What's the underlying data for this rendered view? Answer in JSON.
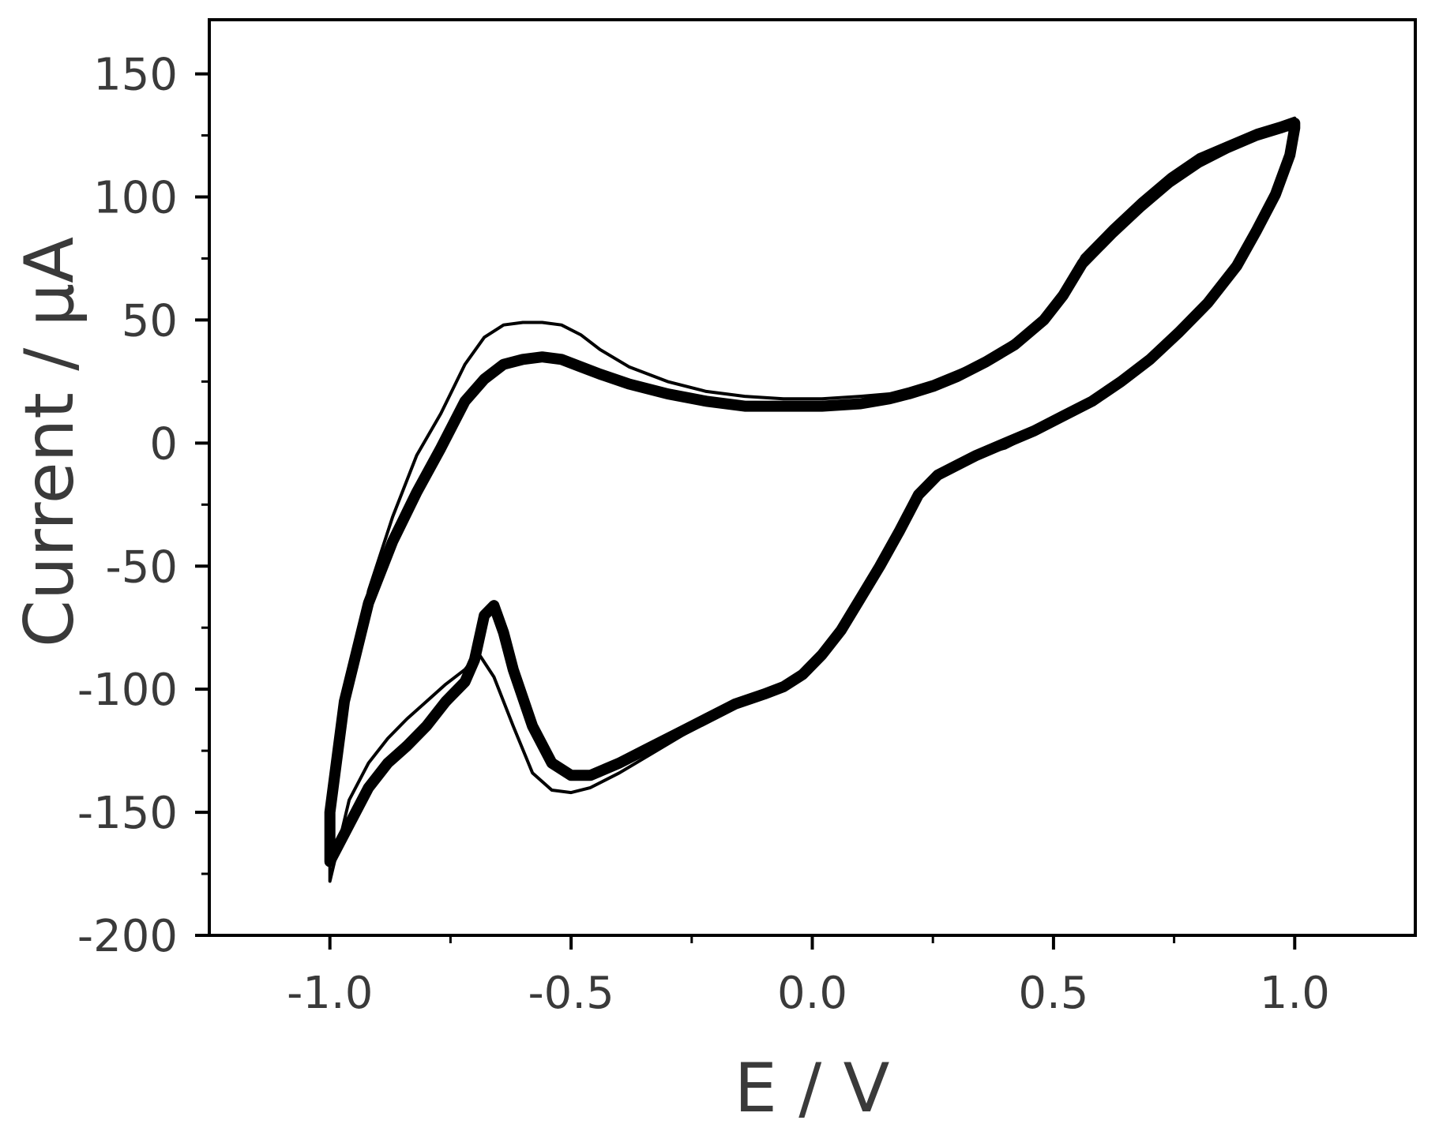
{
  "chart_data": {
    "type": "line",
    "title": "",
    "xlabel": "E / V",
    "ylabel": "Current / µA",
    "xlim": [
      -1.25,
      1.25
    ],
    "ylim": [
      -200,
      172
    ],
    "xticks": [
      -1.0,
      -0.5,
      0.0,
      0.5,
      1.0
    ],
    "xtick_labels": [
      "-1.0",
      "-0.5",
      "0.0",
      "0.5",
      "1.0"
    ],
    "yticks": [
      -200,
      -150,
      -100,
      -50,
      0,
      50,
      100,
      150
    ],
    "ytick_labels": [
      "-200",
      "-150",
      "-100",
      "-50",
      "0",
      "50",
      "100",
      "150"
    ],
    "grid": false,
    "legend": "none",
    "line_color": "#000000",
    "series": [
      {
        "style": "thin",
        "x": [
          -1.0,
          -0.97,
          -0.92,
          -0.87,
          -0.82,
          -0.77,
          -0.72,
          -0.68,
          -0.64,
          -0.6,
          -0.56,
          -0.52,
          -0.48,
          -0.44,
          -0.38,
          -0.3,
          -0.22,
          -0.14,
          -0.06,
          0.02,
          0.1,
          0.16,
          0.2,
          0.25,
          0.3,
          0.36,
          0.42,
          0.48,
          0.52,
          0.56,
          0.62,
          0.68,
          0.74,
          0.8,
          0.86,
          0.92,
          0.97,
          1.0,
          1.0,
          0.99,
          0.96,
          0.92,
          0.88,
          0.82,
          0.76,
          0.7,
          0.64,
          0.58,
          0.52,
          0.46,
          0.4,
          0.34,
          0.3,
          0.26,
          0.22,
          0.18,
          0.14,
          0.1,
          0.06,
          0.02,
          -0.02,
          -0.06,
          -0.1,
          -0.16,
          -0.22,
          -0.28,
          -0.34,
          -0.4,
          -0.46,
          -0.5,
          -0.54,
          -0.58,
          -0.62,
          -0.66,
          -0.69,
          -0.7,
          -0.72,
          -0.76,
          -0.8,
          -0.84,
          -0.88,
          -0.92,
          -0.96,
          -1.0
        ],
        "y": [
          -155,
          -110,
          -60,
          -30,
          -5,
          12,
          32,
          43,
          48,
          49,
          49,
          48,
          44,
          38,
          31,
          25,
          21,
          19,
          18,
          18,
          19,
          20,
          22,
          25,
          29,
          34,
          42,
          52,
          62,
          76,
          88,
          99,
          109,
          117,
          122,
          127,
          130,
          132,
          130,
          118,
          102,
          86,
          72,
          56,
          44,
          34,
          25,
          16,
          10,
          4,
          -2,
          -5,
          -10,
          -14,
          -22,
          -38,
          -52,
          -65,
          -78,
          -88,
          -95,
          -100,
          -103,
          -107,
          -113,
          -120,
          -127,
          -134,
          -140,
          -142,
          -141,
          -134,
          -115,
          -95,
          -86,
          -87,
          -92,
          -98,
          -105,
          -112,
          -120,
          -130,
          -145,
          -178
        ]
      },
      {
        "style": "thick",
        "x": [
          -1.0,
          -0.97,
          -0.92,
          -0.87,
          -0.82,
          -0.77,
          -0.72,
          -0.68,
          -0.64,
          -0.6,
          -0.56,
          -0.52,
          -0.48,
          -0.44,
          -0.38,
          -0.3,
          -0.22,
          -0.14,
          -0.06,
          0.02,
          0.1,
          0.16,
          0.2,
          0.25,
          0.3,
          0.36,
          0.42,
          0.48,
          0.52,
          0.56,
          0.62,
          0.68,
          0.74,
          0.8,
          0.86,
          0.92,
          0.97,
          1.0,
          1.0,
          0.99,
          0.96,
          0.92,
          0.88,
          0.82,
          0.76,
          0.7,
          0.64,
          0.58,
          0.52,
          0.46,
          0.4,
          0.34,
          0.3,
          0.26,
          0.22,
          0.18,
          0.14,
          0.1,
          0.06,
          0.02,
          -0.02,
          -0.06,
          -0.1,
          -0.16,
          -0.22,
          -0.28,
          -0.34,
          -0.4,
          -0.46,
          -0.5,
          -0.54,
          -0.58,
          -0.62,
          -0.64,
          -0.66,
          -0.68,
          -0.7,
          -0.72,
          -0.76,
          -0.8,
          -0.84,
          -0.88,
          -0.92,
          -0.96,
          -1.0
        ],
        "y": [
          -150,
          -105,
          -65,
          -40,
          -20,
          -2,
          17,
          26,
          32,
          34,
          35,
          34,
          31,
          28,
          24,
          20,
          17,
          15,
          15,
          15,
          16,
          18,
          20,
          23,
          27,
          33,
          40,
          50,
          60,
          73,
          85,
          96,
          106,
          114,
          120,
          125,
          128,
          130,
          128,
          117,
          101,
          86,
          72,
          57,
          45,
          34,
          25,
          17,
          11,
          5,
          0,
          -5,
          -9,
          -13,
          -21,
          -36,
          -50,
          -63,
          -76,
          -86,
          -94,
          -99,
          -102,
          -106,
          -112,
          -118,
          -124,
          -130,
          -135,
          -135,
          -130,
          -115,
          -92,
          -77,
          -66,
          -70,
          -88,
          -97,
          -105,
          -115,
          -123,
          -130,
          -140,
          -155,
          -170
        ]
      }
    ]
  }
}
